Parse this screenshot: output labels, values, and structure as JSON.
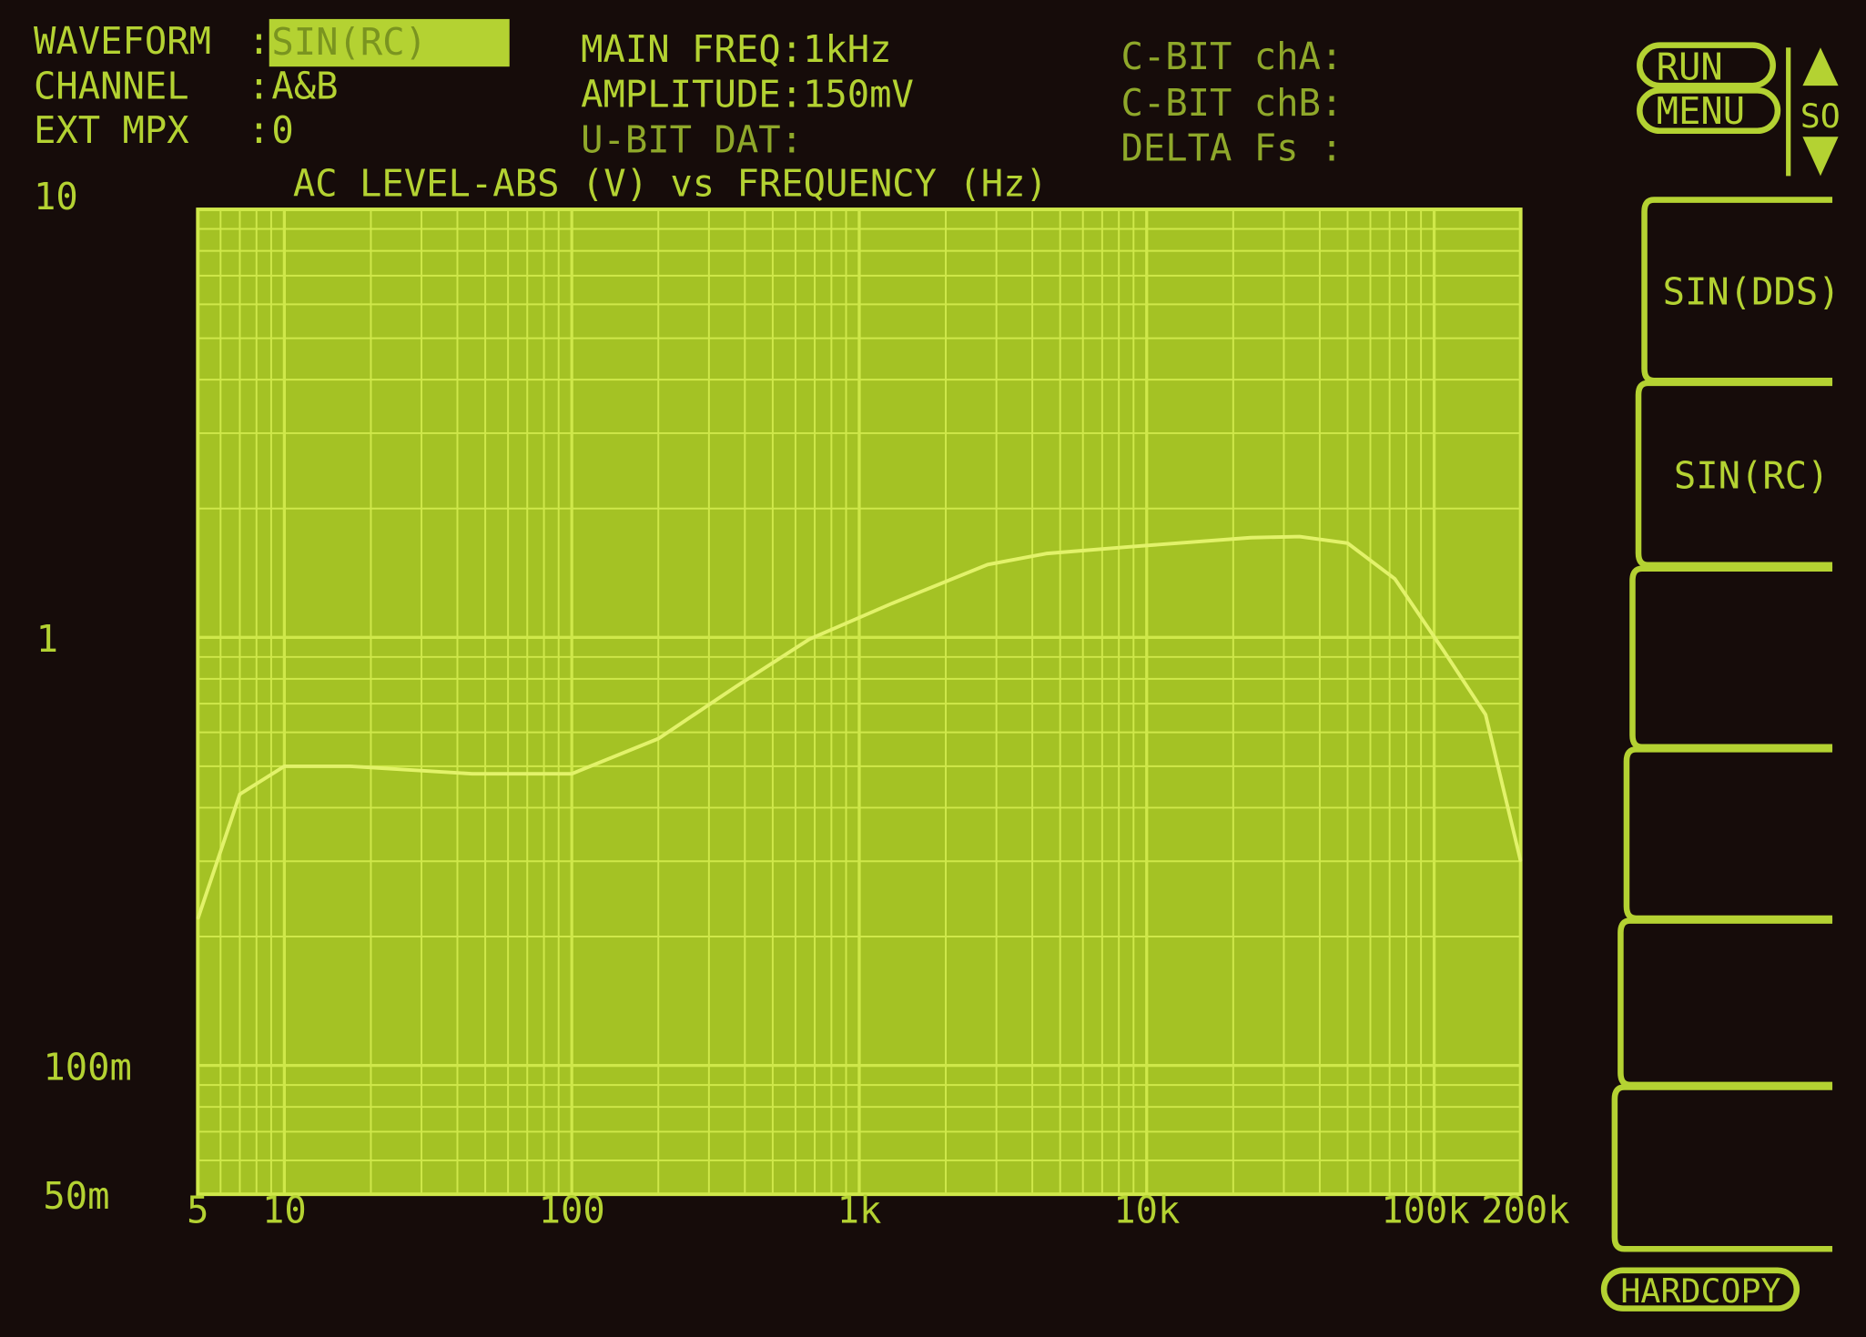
{
  "status": {
    "waveform_label": "WAVEFORM",
    "waveform_value": "SIN(RC)",
    "channel_label": "CHANNEL",
    "channel_value": "A&B",
    "ext_mpx_label": "EXT MPX",
    "ext_mpx_value": "0",
    "main_freq": "MAIN FREQ:1kHz",
    "amplitude": "AMPLITUDE:150mV",
    "ubit": "U-BIT DAT:",
    "cbit_a": "C-BIT chA:",
    "cbit_b": "C-BIT chB:",
    "delta_fs": "DELTA Fs :"
  },
  "controls": {
    "run": "RUN",
    "menu": "MENU",
    "so": "SO",
    "up_icon": "triangle-up",
    "down_icon": "triangle-down",
    "hardcopy": "HARDCOPY"
  },
  "softkeys": [
    "SIN(DDS)",
    "SIN(RC)",
    "",
    "",
    "",
    ""
  ],
  "colors": {
    "phosphor": "#b4d232",
    "plot_bg": "#a4c224",
    "grid": "#cfe84a",
    "trace": "#e2f26a",
    "background": "#160c0a"
  },
  "chart_data": {
    "type": "line",
    "title": "AC LEVEL-ABS (V) vs FREQUENCY (Hz)",
    "x_scale": "log",
    "y_scale": "log",
    "xlim": [
      5,
      200000
    ],
    "ylim": [
      0.05,
      10
    ],
    "grid": true,
    "x_ticks": [
      {
        "v": 5,
        "label": "5"
      },
      {
        "v": 10,
        "label": "10"
      },
      {
        "v": 100,
        "label": "100"
      },
      {
        "v": 1000,
        "label": "1k"
      },
      {
        "v": 10000,
        "label": "10k"
      },
      {
        "v": 100000,
        "label": "100k"
      },
      {
        "v": 200000,
        "label": "200k"
      }
    ],
    "y_ticks": [
      {
        "v": 10,
        "label": "10"
      },
      {
        "v": 1,
        "label": "1"
      },
      {
        "v": 0.1,
        "label": "100m"
      },
      {
        "v": 0.05,
        "label": "50m"
      }
    ],
    "series": [
      {
        "x": [
          5,
          7,
          10,
          17,
          45,
          100,
          200,
          375,
          670,
          1300,
          2800,
          4500,
          8900,
          23000,
          34000,
          50000,
          73000,
          108000,
          151000,
          200000
        ],
        "y": [
          0.22,
          0.43,
          0.5,
          0.5,
          0.48,
          0.48,
          0.58,
          0.77,
          0.99,
          1.2,
          1.48,
          1.57,
          1.63,
          1.71,
          1.72,
          1.66,
          1.37,
          0.93,
          0.66,
          0.3
        ]
      }
    ]
  }
}
